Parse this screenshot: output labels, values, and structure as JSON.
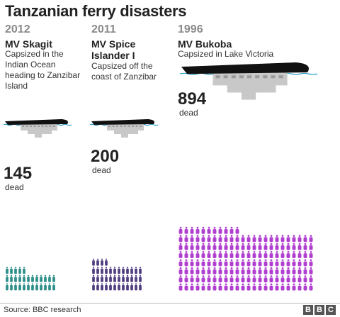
{
  "title": "Tanzanian ferry disasters",
  "source": "Source: BBC research",
  "logo": "BBC",
  "colors": {
    "ship_hull": "#111111",
    "ship_structure": "#c8c8c8",
    "water": "#2a9bc4"
  },
  "icons": [
    "ferry-icon",
    "person-icon"
  ],
  "chart_data": {
    "type": "pictogram",
    "title": "Tanzanian ferry disasters",
    "unit_label": "dead",
    "series": [
      {
        "year": "2012",
        "vessel": "MV Skagit",
        "description": "Capsized in the Indian Ocean heading to Zanzibar Island",
        "value": 145,
        "value_text": "145",
        "color": "#2e8f8a"
      },
      {
        "year": "2011",
        "vessel": "MV Spice Islander I",
        "description": "Capsized off the coast of Zanzibar",
        "value": 200,
        "value_text": "200",
        "color": "#4f3c7f"
      },
      {
        "year": "1996",
        "vessel": "MV Bukoba",
        "description": "Capsized in Lake Victoria",
        "value": 894,
        "value_text": "894",
        "color": "#b03fd0"
      }
    ]
  }
}
